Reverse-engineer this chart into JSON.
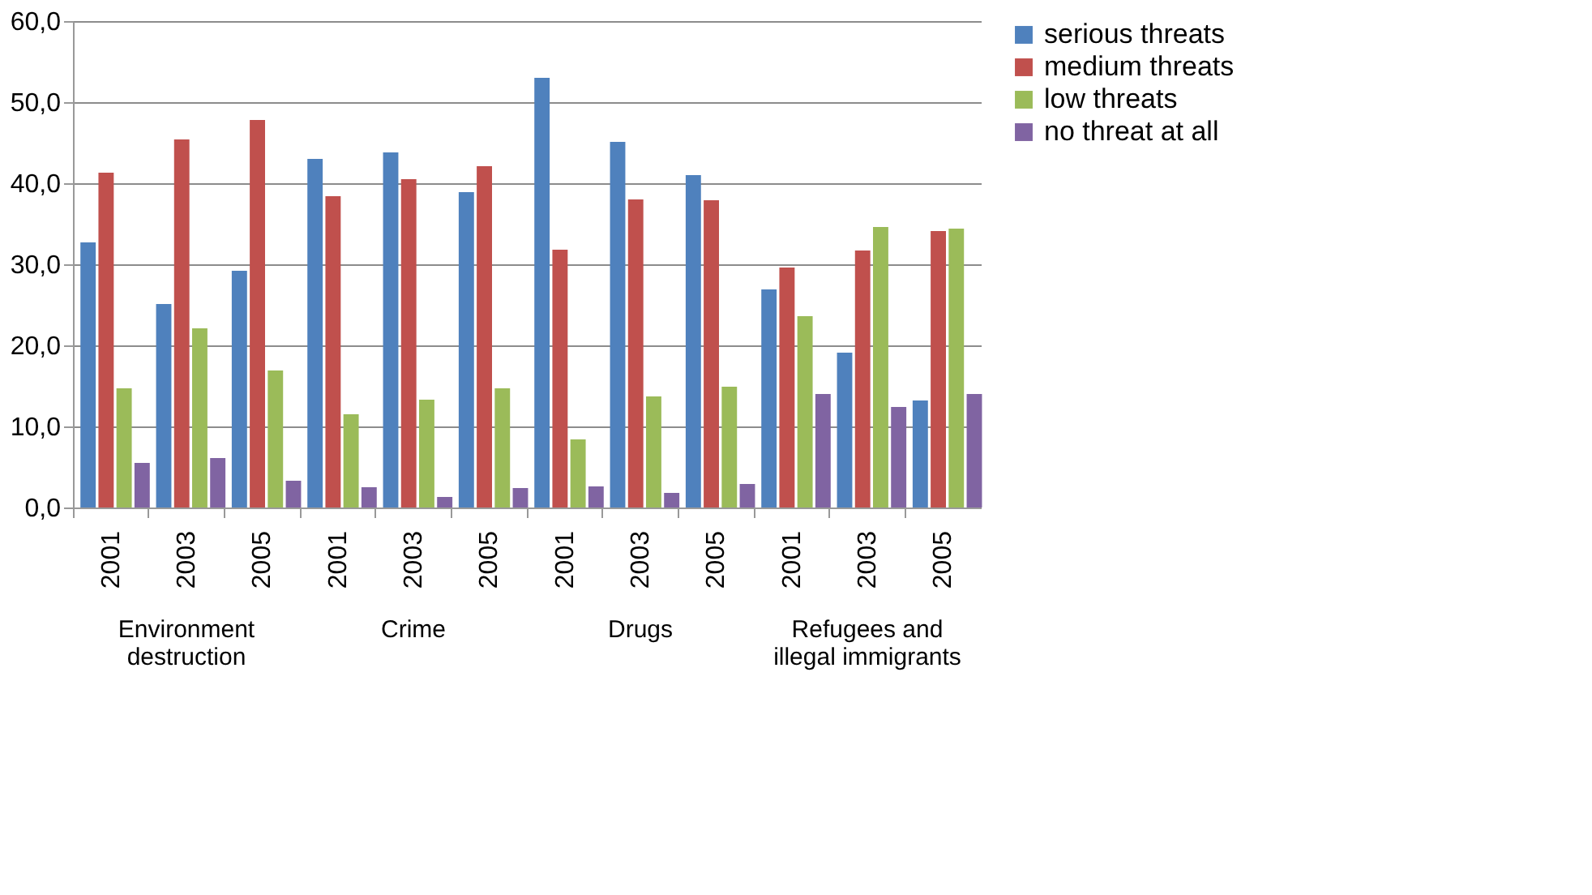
{
  "chart_data": {
    "type": "bar",
    "categories": [
      "2001",
      "2003",
      "2005",
      "2001",
      "2003",
      "2005",
      "2001",
      "2003",
      "2005",
      "2001",
      "2003",
      "2005"
    ],
    "series": [
      {
        "name": "serious threats",
        "color": "#4f81bd",
        "values": [
          32.7,
          25.1,
          29.2,
          43.0,
          43.8,
          38.9,
          53.0,
          45.1,
          41.0,
          26.9,
          19.1,
          13.2
        ]
      },
      {
        "name": "medium threats",
        "color": "#c0504d",
        "values": [
          41.3,
          45.4,
          47.8,
          38.4,
          40.5,
          42.1,
          31.8,
          38.0,
          37.9,
          29.6,
          31.7,
          34.1
        ]
      },
      {
        "name": "low threats",
        "color": "#9bbb59",
        "values": [
          14.7,
          22.1,
          16.9,
          11.5,
          13.3,
          14.7,
          8.4,
          13.7,
          14.9,
          23.6,
          34.6,
          34.4
        ]
      },
      {
        "name": "no threat at all",
        "color": "#8064a2",
        "values": [
          5.5,
          6.1,
          3.3,
          2.5,
          1.3,
          2.4,
          2.6,
          1.8,
          2.9,
          14.0,
          12.4,
          14.0
        ]
      }
    ],
    "ylim": [
      0,
      60
    ],
    "yticks": [
      {
        "value": 0,
        "label": "0,0"
      },
      {
        "value": 10,
        "label": "10,0"
      },
      {
        "value": 20,
        "label": "20,0"
      },
      {
        "value": 30,
        "label": "30,0"
      },
      {
        "value": 40,
        "label": "40,0"
      },
      {
        "value": 50,
        "label": "50,0"
      },
      {
        "value": 60,
        "label": "60,0"
      }
    ],
    "annotations": [
      "Environment destruction",
      "Crime",
      "Drugs",
      "Refugees and illegal immigrants"
    ],
    "grid": "y",
    "legend": "right"
  }
}
